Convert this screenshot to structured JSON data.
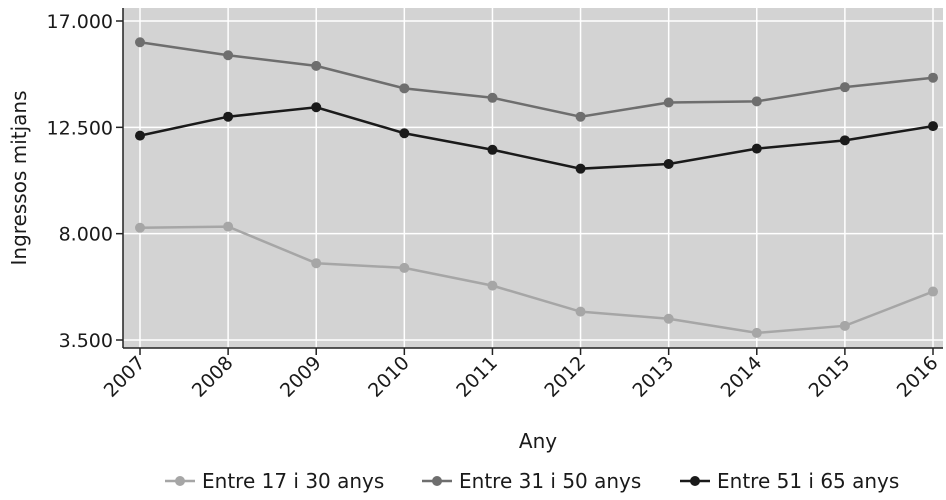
{
  "chart_data": {
    "type": "line",
    "title": "",
    "xlabel": "Any",
    "ylabel": "Ingressos mitjans",
    "x": [
      "2007",
      "2008",
      "2009",
      "2010",
      "2011",
      "2012",
      "2013",
      "2014",
      "2015",
      "2016"
    ],
    "yticks": [
      "17.000",
      "12.500",
      "8.000",
      "3.500"
    ],
    "ytick_values": [
      17000,
      12500,
      8000,
      3500
    ],
    "ylim": [
      3000,
      17500
    ],
    "grid": true,
    "legend_position": "bottom",
    "series": [
      {
        "name": "Entre 17 i 30 anys",
        "color": "#a6a6a6",
        "values": [
          8250,
          8300,
          6750,
          6550,
          5800,
          4700,
          4400,
          3800,
          4100,
          5550
        ]
      },
      {
        "name": "Entre 31 i 50 anys",
        "color": "#6e6e6e",
        "values": [
          16100,
          15550,
          15100,
          14150,
          13750,
          12950,
          13550,
          13600,
          14200,
          14600
        ]
      },
      {
        "name": "Entre 51 i 65 anys",
        "color": "#1a1a1a",
        "values": [
          12150,
          12950,
          13350,
          12250,
          11550,
          10750,
          10950,
          11600,
          11950,
          12550
        ]
      }
    ]
  }
}
